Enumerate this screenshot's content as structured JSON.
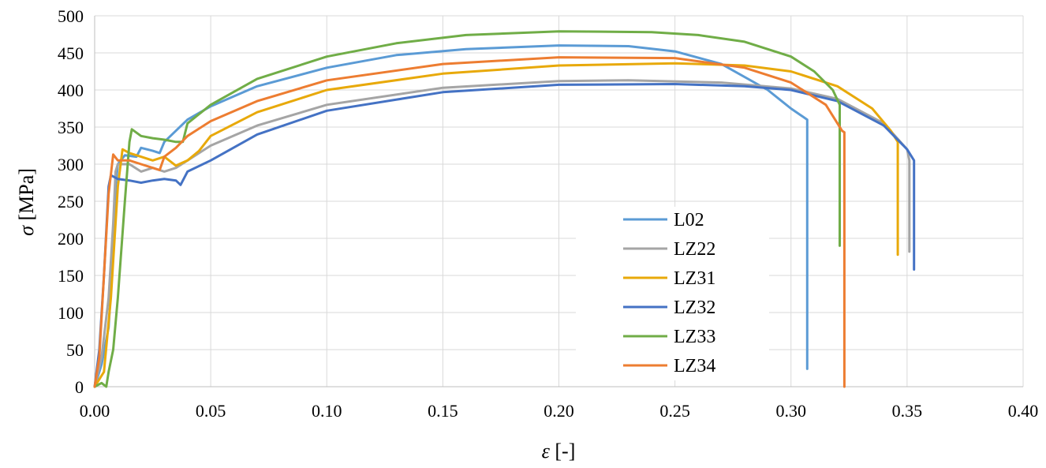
{
  "chart_data": {
    "type": "line",
    "xlabel_symbol": "ε",
    "xlabel_unit": " [-]",
    "ylabel_symbol": "σ",
    "ylabel_unit": " [MPa]",
    "xlim": [
      0,
      0.4
    ],
    "ylim": [
      0,
      500
    ],
    "xticks": [
      "0.00",
      "0.05",
      "0.10",
      "0.15",
      "0.20",
      "0.25",
      "0.30",
      "0.35",
      "0.40"
    ],
    "yticks": [
      "0",
      "50",
      "100",
      "150",
      "200",
      "250",
      "300",
      "350",
      "400",
      "450",
      "500"
    ],
    "grid": true,
    "legend_position": "center-right",
    "series": [
      {
        "name": "L02",
        "color": "#5B9BD5",
        "points": [
          [
            0,
            0
          ],
          [
            0.003,
            30
          ],
          [
            0.006,
            80
          ],
          [
            0.008,
            180
          ],
          [
            0.009,
            270
          ],
          [
            0.01,
            300
          ],
          [
            0.013,
            312
          ],
          [
            0.018,
            310
          ],
          [
            0.02,
            322
          ],
          [
            0.025,
            318
          ],
          [
            0.028,
            315
          ],
          [
            0.03,
            330
          ],
          [
            0.04,
            360
          ],
          [
            0.05,
            378
          ],
          [
            0.07,
            405
          ],
          [
            0.1,
            430
          ],
          [
            0.13,
            447
          ],
          [
            0.16,
            455
          ],
          [
            0.2,
            460
          ],
          [
            0.23,
            459
          ],
          [
            0.25,
            452
          ],
          [
            0.27,
            435
          ],
          [
            0.29,
            400
          ],
          [
            0.3,
            375
          ],
          [
            0.307,
            360
          ],
          [
            0.307,
            24
          ]
        ]
      },
      {
        "name": "LZ22",
        "color": "#A5A5A5",
        "points": [
          [
            0,
            0
          ],
          [
            0.003,
            40
          ],
          [
            0.006,
            120
          ],
          [
            0.008,
            220
          ],
          [
            0.009,
            290
          ],
          [
            0.01,
            300
          ],
          [
            0.015,
            300
          ],
          [
            0.02,
            290
          ],
          [
            0.025,
            295
          ],
          [
            0.03,
            290
          ],
          [
            0.035,
            295
          ],
          [
            0.04,
            305
          ],
          [
            0.05,
            325
          ],
          [
            0.07,
            352
          ],
          [
            0.1,
            380
          ],
          [
            0.15,
            403
          ],
          [
            0.2,
            412
          ],
          [
            0.23,
            413
          ],
          [
            0.27,
            410
          ],
          [
            0.3,
            402
          ],
          [
            0.32,
            388
          ],
          [
            0.34,
            355
          ],
          [
            0.35,
            320
          ],
          [
            0.351,
            305
          ],
          [
            0.351,
            182
          ]
        ]
      },
      {
        "name": "LZ31",
        "color": "#E8A90A",
        "points": [
          [
            0,
            0
          ],
          [
            0.004,
            20
          ],
          [
            0.007,
            120
          ],
          [
            0.01,
            270
          ],
          [
            0.012,
            320
          ],
          [
            0.015,
            315
          ],
          [
            0.02,
            310
          ],
          [
            0.025,
            305
          ],
          [
            0.03,
            310
          ],
          [
            0.035,
            298
          ],
          [
            0.04,
            305
          ],
          [
            0.045,
            318
          ],
          [
            0.05,
            338
          ],
          [
            0.07,
            370
          ],
          [
            0.1,
            400
          ],
          [
            0.15,
            422
          ],
          [
            0.2,
            433
          ],
          [
            0.25,
            436
          ],
          [
            0.28,
            433
          ],
          [
            0.3,
            425
          ],
          [
            0.32,
            405
          ],
          [
            0.335,
            375
          ],
          [
            0.343,
            345
          ],
          [
            0.346,
            330
          ],
          [
            0.346,
            178
          ]
        ]
      },
      {
        "name": "LZ32",
        "color": "#4472C4",
        "points": [
          [
            0,
            0
          ],
          [
            0.002,
            50
          ],
          [
            0.004,
            150
          ],
          [
            0.006,
            270
          ],
          [
            0.007,
            285
          ],
          [
            0.01,
            280
          ],
          [
            0.015,
            278
          ],
          [
            0.02,
            275
          ],
          [
            0.025,
            278
          ],
          [
            0.03,
            280
          ],
          [
            0.035,
            278
          ],
          [
            0.037,
            272
          ],
          [
            0.04,
            290
          ],
          [
            0.05,
            305
          ],
          [
            0.07,
            340
          ],
          [
            0.1,
            372
          ],
          [
            0.15,
            397
          ],
          [
            0.2,
            407
          ],
          [
            0.25,
            408
          ],
          [
            0.28,
            405
          ],
          [
            0.3,
            400
          ],
          [
            0.32,
            385
          ],
          [
            0.34,
            352
          ],
          [
            0.35,
            320
          ],
          [
            0.353,
            305
          ],
          [
            0.353,
            158
          ]
        ]
      },
      {
        "name": "LZ33",
        "color": "#70AD47",
        "points": [
          [
            0,
            0
          ],
          [
            0.003,
            5
          ],
          [
            0.005,
            0
          ],
          [
            0.006,
            20
          ],
          [
            0.008,
            50
          ],
          [
            0.01,
            120
          ],
          [
            0.013,
            250
          ],
          [
            0.015,
            330
          ],
          [
            0.016,
            347
          ],
          [
            0.02,
            338
          ],
          [
            0.025,
            335
          ],
          [
            0.03,
            333
          ],
          [
            0.035,
            330
          ],
          [
            0.038,
            330
          ],
          [
            0.04,
            355
          ],
          [
            0.05,
            380
          ],
          [
            0.07,
            415
          ],
          [
            0.1,
            445
          ],
          [
            0.13,
            463
          ],
          [
            0.16,
            474
          ],
          [
            0.2,
            479
          ],
          [
            0.24,
            478
          ],
          [
            0.26,
            474
          ],
          [
            0.28,
            465
          ],
          [
            0.3,
            445
          ],
          [
            0.31,
            425
          ],
          [
            0.318,
            400
          ],
          [
            0.321,
            380
          ],
          [
            0.321,
            190
          ]
        ]
      },
      {
        "name": "LZ34",
        "color": "#ED7D31",
        "points": [
          [
            0,
            0
          ],
          [
            0.002,
            40
          ],
          [
            0.004,
            150
          ],
          [
            0.006,
            260
          ],
          [
            0.008,
            313
          ],
          [
            0.01,
            305
          ],
          [
            0.015,
            305
          ],
          [
            0.02,
            300
          ],
          [
            0.025,
            295
          ],
          [
            0.028,
            292
          ],
          [
            0.03,
            310
          ],
          [
            0.035,
            322
          ],
          [
            0.04,
            338
          ],
          [
            0.05,
            358
          ],
          [
            0.07,
            385
          ],
          [
            0.1,
            413
          ],
          [
            0.15,
            435
          ],
          [
            0.2,
            444
          ],
          [
            0.25,
            443
          ],
          [
            0.28,
            430
          ],
          [
            0.3,
            410
          ],
          [
            0.315,
            380
          ],
          [
            0.322,
            345
          ],
          [
            0.323,
            343
          ],
          [
            0.323,
            0
          ]
        ]
      }
    ]
  }
}
